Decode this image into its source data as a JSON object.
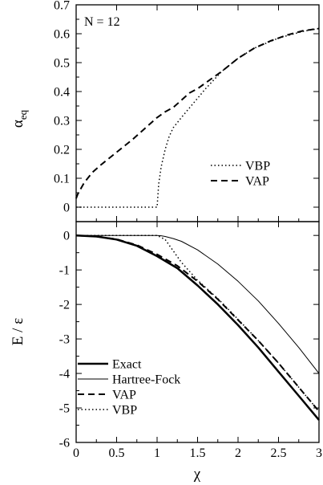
{
  "chart_data": [
    {
      "type": "line",
      "title": "",
      "annotation": "N = 12",
      "xlabel": "",
      "ylabel_main": "α",
      "ylabel_sub": "eq",
      "xlim": [
        0,
        3
      ],
      "ylim": [
        -0.05,
        0.7
      ],
      "x_ticks": [
        0,
        0.5,
        1,
        1.5,
        2,
        2.5,
        3
      ],
      "y_ticks": [
        0,
        0.1,
        0.2,
        0.3,
        0.4,
        0.5,
        0.6,
        0.7
      ],
      "y_tick_labels": [
        "0",
        "0.1",
        "0.2",
        "0.3",
        "0.4",
        "0.5",
        "0.6",
        "0.7"
      ],
      "grid": false,
      "legend_position": "bottom-right",
      "series": [
        {
          "name": "VBP",
          "style": "dotted",
          "width": 1.5,
          "x": [
            0,
            0.5,
            0.99,
            1.0,
            1.02,
            1.05,
            1.1,
            1.15,
            1.2,
            1.3,
            1.45,
            1.6,
            1.8,
            2.0,
            2.2,
            2.5,
            2.8,
            3.0
          ],
          "y": [
            0,
            0,
            0,
            0.0,
            0.08,
            0.14,
            0.2,
            0.245,
            0.275,
            0.31,
            0.36,
            0.41,
            0.47,
            0.515,
            0.55,
            0.585,
            0.608,
            0.618
          ]
        },
        {
          "name": "VAP",
          "style": "dashed",
          "width": 2,
          "x": [
            0,
            0.02,
            0.05,
            0.1,
            0.2,
            0.3,
            0.5,
            0.7,
            0.9,
            1.0,
            1.1,
            1.2,
            1.3,
            1.4,
            1.5,
            1.6,
            1.8,
            2.0,
            2.2,
            2.4,
            2.6,
            2.8,
            3.0
          ],
          "y": [
            0.03,
            0.045,
            0.06,
            0.085,
            0.12,
            0.145,
            0.19,
            0.235,
            0.285,
            0.31,
            0.33,
            0.345,
            0.37,
            0.395,
            0.41,
            0.43,
            0.47,
            0.515,
            0.55,
            0.575,
            0.595,
            0.61,
            0.618
          ]
        }
      ]
    },
    {
      "type": "line",
      "title": "",
      "xlabel": "χ",
      "ylabel": "E / ε",
      "xlim": [
        0,
        3
      ],
      "ylim": [
        -6,
        0.4
      ],
      "x_ticks": [
        0,
        0.5,
        1,
        1.5,
        2,
        2.5,
        3
      ],
      "x_tick_labels": [
        "0",
        "0.5",
        "1",
        "1.5",
        "2",
        "2.5",
        "3"
      ],
      "y_ticks": [
        0,
        -1,
        -2,
        -3,
        -4,
        -5,
        -6
      ],
      "y_tick_labels": [
        "0",
        "-1",
        "-2",
        "-3",
        "-4",
        "-5",
        "-6"
      ],
      "grid": false,
      "legend_position": "bottom-left",
      "series": [
        {
          "name": "Exact",
          "style": "solid",
          "width": 2.5,
          "x": [
            0,
            0.25,
            0.5,
            0.75,
            1.0,
            1.25,
            1.5,
            1.75,
            2.0,
            2.25,
            2.5,
            2.75,
            3.0
          ],
          "y": [
            0,
            -0.03,
            -0.12,
            -0.3,
            -0.6,
            -0.95,
            -1.45,
            -2.0,
            -2.6,
            -3.25,
            -3.95,
            -4.65,
            -5.35
          ]
        },
        {
          "name": "Hartree-Fock",
          "style": "solid",
          "width": 1,
          "x": [
            0,
            0.5,
            1.0,
            1.05,
            1.1,
            1.2,
            1.3,
            1.5,
            1.75,
            2.0,
            2.25,
            2.5,
            2.75,
            3.0
          ],
          "y": [
            0,
            0,
            0,
            -0.01,
            -0.03,
            -0.09,
            -0.17,
            -0.42,
            -0.83,
            -1.33,
            -1.9,
            -2.55,
            -3.25,
            -4.0
          ]
        },
        {
          "name": "VAP",
          "style": "dashed",
          "width": 2,
          "x": [
            0,
            0.25,
            0.5,
            0.75,
            1.0,
            1.25,
            1.5,
            1.75,
            2.0,
            2.25,
            2.5,
            2.75,
            3.0
          ],
          "y": [
            0,
            -0.03,
            -0.11,
            -0.28,
            -0.55,
            -0.88,
            -1.33,
            -1.85,
            -2.45,
            -3.05,
            -3.7,
            -4.4,
            -5.1
          ]
        },
        {
          "name": "VBP",
          "style": "dotted",
          "width": 1.5,
          "x": [
            0,
            0.5,
            1.0,
            1.1,
            1.2,
            1.3,
            1.5,
            1.75,
            2.0,
            2.25,
            2.5,
            2.75,
            3.0
          ],
          "y": [
            0,
            0,
            0,
            -0.12,
            -0.45,
            -0.78,
            -1.3,
            -1.83,
            -2.43,
            -3.05,
            -3.7,
            -4.4,
            -5.1
          ]
        }
      ]
    }
  ]
}
